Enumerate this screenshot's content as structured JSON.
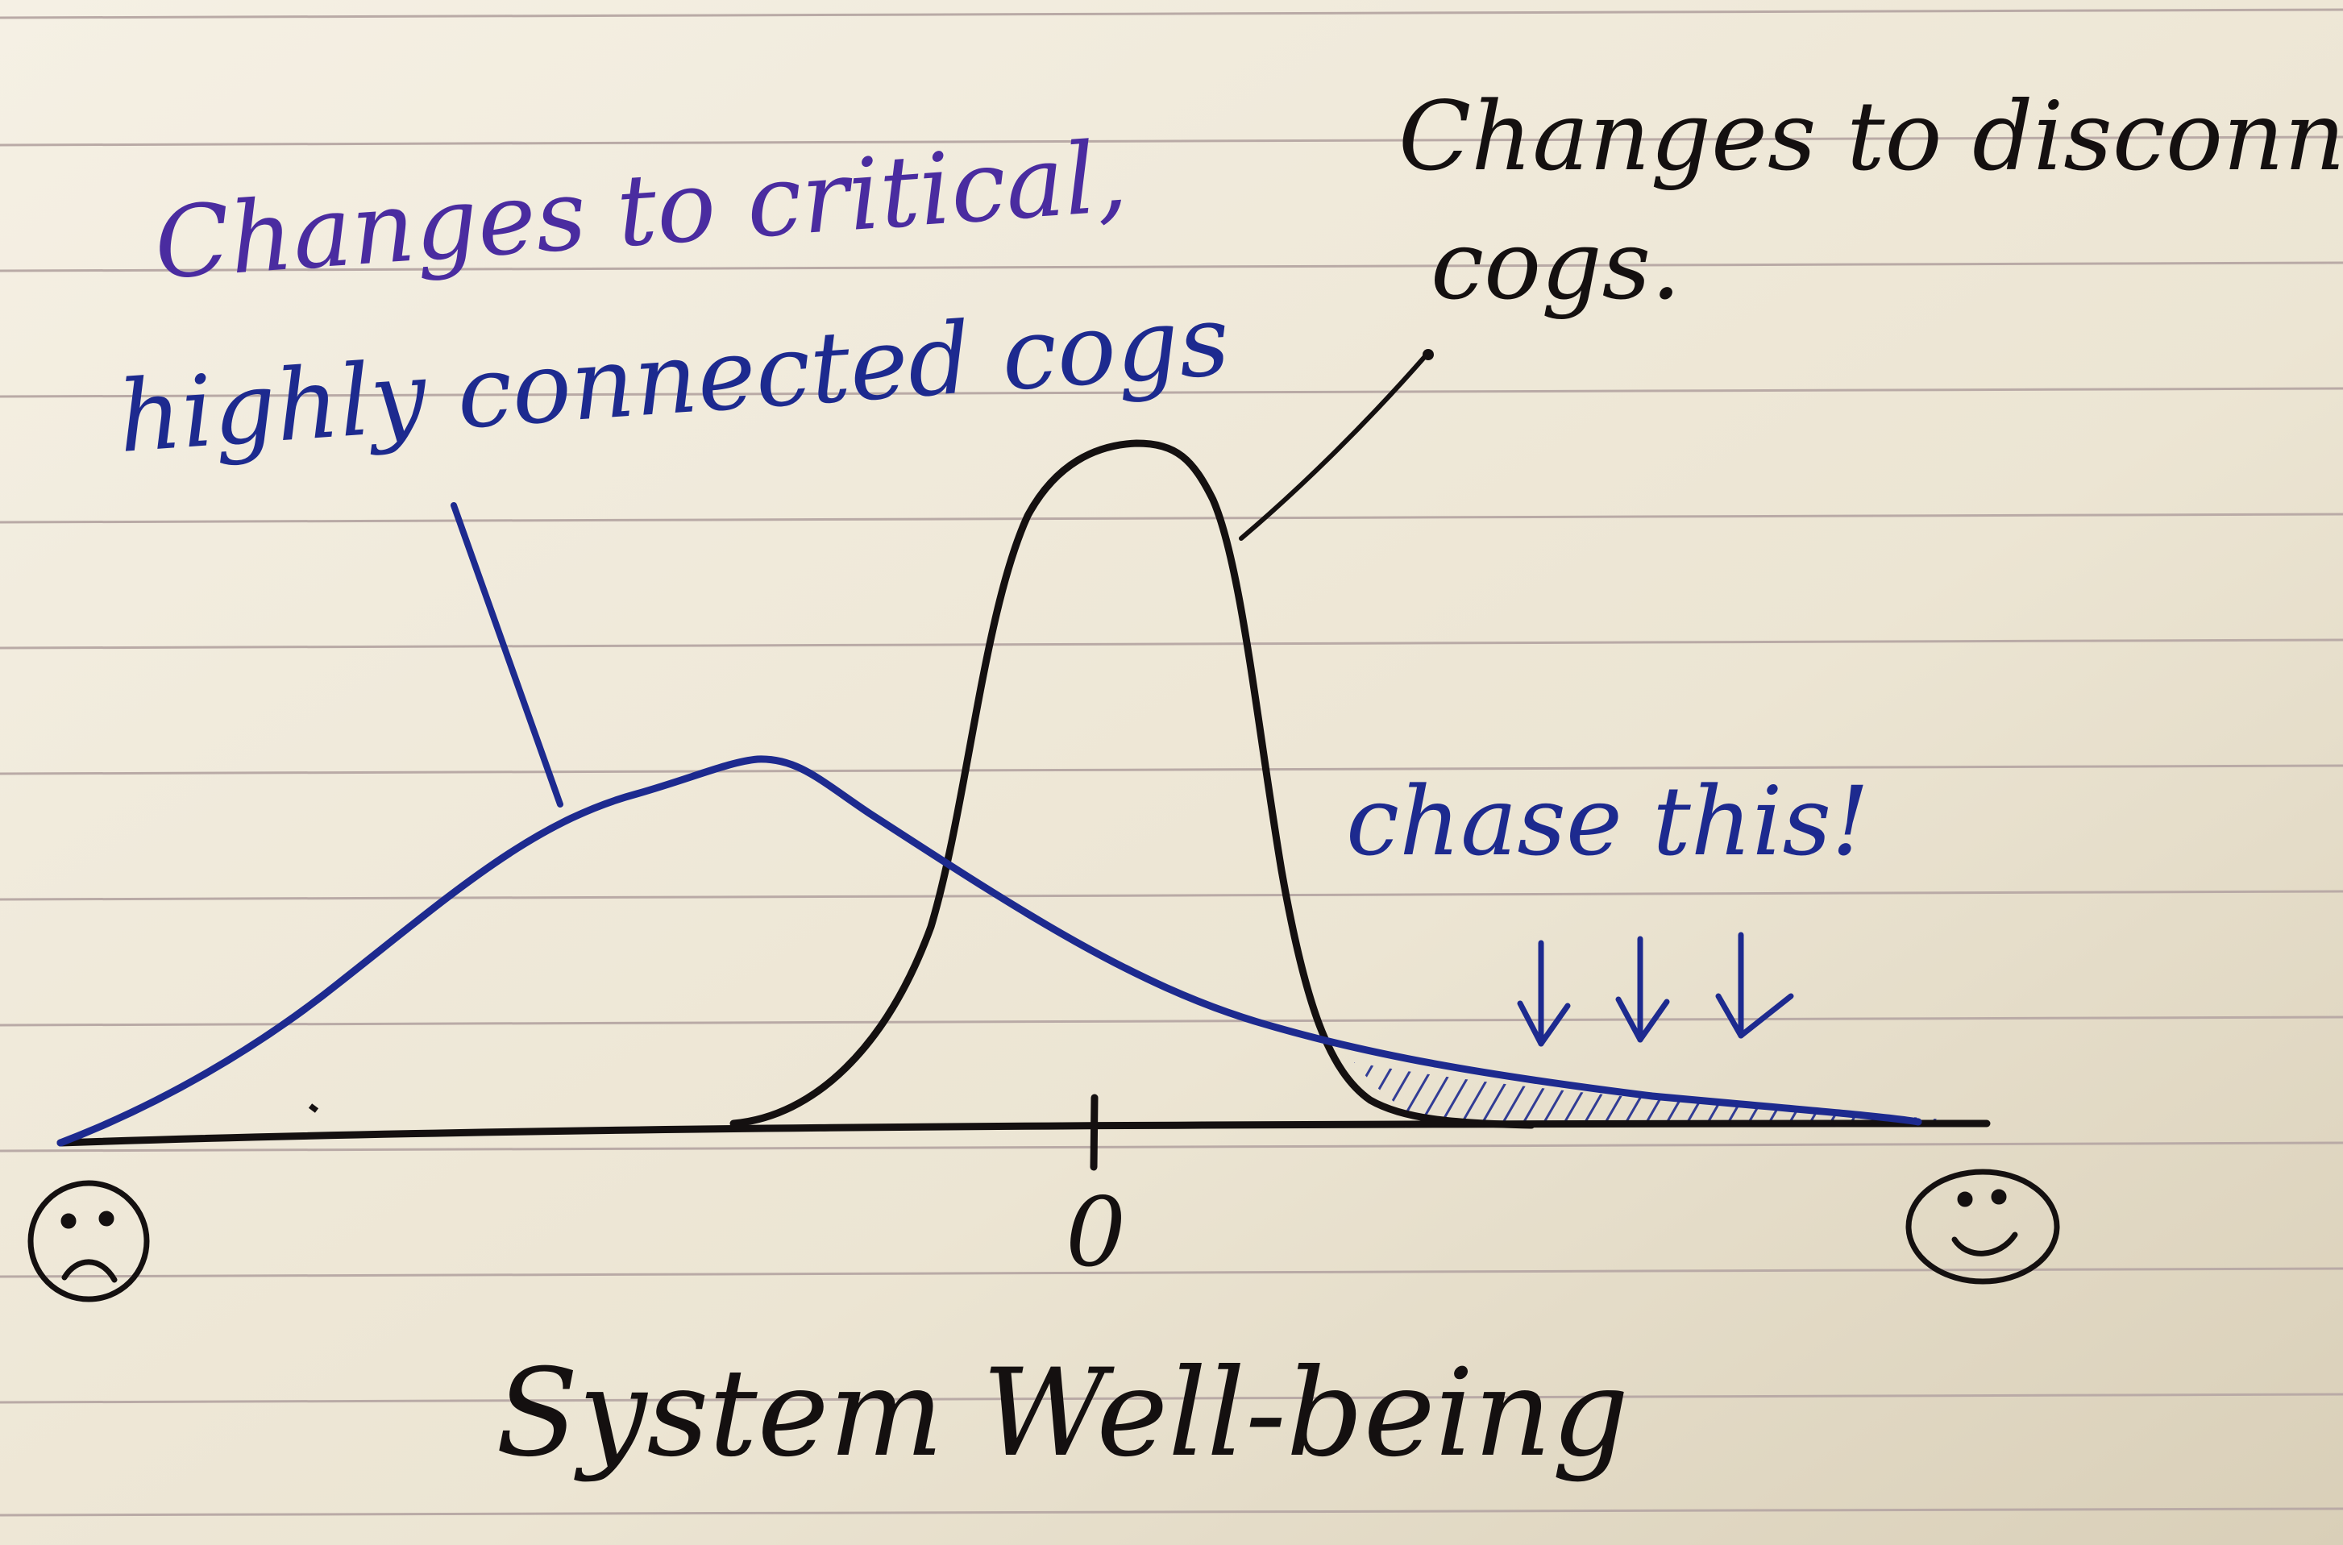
{
  "annotations": {
    "critical_line1": "Changes to critical,",
    "critical_line2": "highly connected cogs",
    "disconnected_line1": "Changes to disconnected",
    "disconnected_line2": "cogs.",
    "chase": "chase this!"
  },
  "axis": {
    "zero_label": "0",
    "title": "System Well-being",
    "left_end_icon": "sad-face-icon",
    "right_end_icon": "smiley-face-icon"
  },
  "colors": {
    "paper": "#efe9da",
    "rule_line": "#b9aaa6",
    "ink_black": "#141010",
    "ink_blue": "#1d2a8f",
    "ink_purple": "#4a2ca0"
  }
}
